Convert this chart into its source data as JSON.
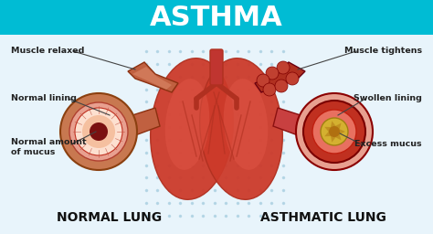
{
  "title": "ASTHMA",
  "title_bg": "#00bcd4",
  "title_color": "#ffffff",
  "body_bg": "#f0f8ff",
  "dot_pattern_color": "#a8cfe0",
  "left_label": "NORMAL LUNG",
  "right_label": "ASTHMATIC LUNG",
  "label_color": "#111111",
  "lung_dark": "#b03020",
  "lung_mid": "#cc3a2a",
  "lung_light": "#e05545",
  "lung_highlight": "#e87060",
  "trachea_color": "#c03530",
  "bronch_outer": "#c87850",
  "bronch_dark": "#8b3010",
  "annotation_color": "#222222",
  "line_color": "#444444",
  "asthma_outer": "#e89080",
  "asthma_lining": "#c83030",
  "mucus_color": "#d4a820",
  "mucus_dark": "#b08010"
}
